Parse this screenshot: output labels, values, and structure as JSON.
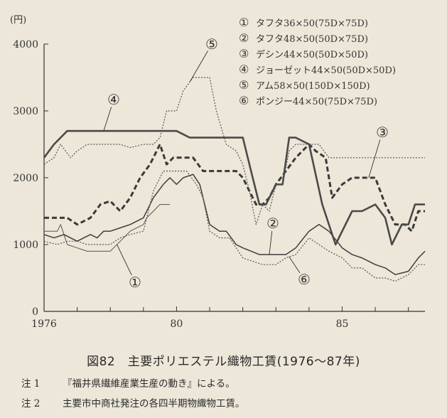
{
  "chart_data": {
    "type": "line",
    "unit_label": "(円)",
    "ylim": [
      0,
      4000
    ],
    "xlim": [
      1976,
      1987.5
    ],
    "y_ticks": [
      {
        "value": 0,
        "label": "0"
      },
      {
        "value": 1000,
        "label": "1000"
      },
      {
        "value": 2000,
        "label": "2000"
      },
      {
        "value": 3000,
        "label": "3000"
      },
      {
        "value": 4000,
        "label": "4000"
      }
    ],
    "x_ticks": [
      {
        "value": 1976,
        "label": "1976"
      },
      {
        "value": 1980,
        "label": "80"
      },
      {
        "value": 1985,
        "label": "85"
      }
    ],
    "x_minor_ticks": [
      1977,
      1978,
      1979,
      1981,
      1982,
      1983,
      1984,
      1986,
      1987
    ],
    "legend_position": "top-right",
    "series": [
      {
        "name": "タフタ36×50(75D×75D)",
        "marker": "①",
        "style": "solid-thin",
        "color": "#555555",
        "x": [
          1976,
          1976.4,
          1976.5,
          1976.7,
          1977,
          1977.3,
          1977.5,
          1977.7,
          1978,
          1978.1,
          1978.3,
          1978.6,
          1979,
          1979.1,
          1979.3,
          1979.5,
          1979.8
        ],
        "y": [
          1200,
          1200,
          1300,
          1000,
          950,
          900,
          900,
          900,
          900,
          950,
          1050,
          1200,
          1300,
          1400,
          1500,
          1600,
          1600
        ]
      },
      {
        "name": "タフタ48×50(50D×75D)",
        "marker": "②",
        "style": "solid-medium",
        "color": "#3d3d3d",
        "x": [
          1976,
          1976.3,
          1976.6,
          1977,
          1977.2,
          1977.4,
          1977.6,
          1977.8,
          1978,
          1978.3,
          1978.6,
          1979,
          1979.3,
          1979.6,
          1979.8,
          1980,
          1980.2,
          1980.5,
          1980.7,
          1981,
          1981.3,
          1981.5,
          1981.8,
          1982,
          1982.5,
          1982.8,
          1983,
          1983.3,
          1983.6,
          1984,
          1984.3,
          1984.6,
          1985,
          1985.3,
          1985.6,
          1986,
          1986.3,
          1986.6,
          1987,
          1987.3,
          1987.5
        ],
        "y": [
          1150,
          1100,
          1150,
          1050,
          1100,
          1150,
          1100,
          1200,
          1200,
          1250,
          1300,
          1400,
          1700,
          1900,
          2000,
          1900,
          2000,
          2050,
          1900,
          1300,
          1200,
          1200,
          1000,
          950,
          850,
          850,
          850,
          850,
          950,
          1200,
          1300,
          1200,
          950,
          850,
          800,
          700,
          650,
          550,
          600,
          800,
          900
        ]
      },
      {
        "name": "デシン44×50(50D×50D)",
        "marker": "③",
        "style": "thick-dashed",
        "color": "#3a3a3a",
        "x": [
          1976,
          1976.4,
          1976.7,
          1977,
          1977.4,
          1977.7,
          1978,
          1978.3,
          1978.6,
          1978.9,
          1979.2,
          1979.5,
          1979.7,
          1979.9,
          1980,
          1980.2,
          1980.5,
          1980.8,
          1981,
          1981.5,
          1981.8,
          1982,
          1982.2,
          1982.4,
          1982.6,
          1982.8,
          1983,
          1983.3,
          1983.6,
          1984,
          1984.2,
          1984.5,
          1984.7,
          1985,
          1985.3,
          1985.6,
          1986,
          1986.3,
          1986.6,
          1986.9,
          1987.1,
          1987.3,
          1987.5
        ],
        "y": [
          1400,
          1400,
          1400,
          1300,
          1400,
          1600,
          1650,
          1500,
          1700,
          2000,
          2200,
          2500,
          2200,
          2300,
          2300,
          2300,
          2300,
          2100,
          2100,
          2100,
          2100,
          2000,
          1800,
          1600,
          1600,
          1700,
          1900,
          2100,
          2300,
          2500,
          2400,
          2300,
          1700,
          1900,
          2000,
          2000,
          2000,
          1600,
          1300,
          1300,
          1200,
          1500,
          1500
        ]
      },
      {
        "name": "ジョーゼット44×50(50D×50D)",
        "marker": "④",
        "style": "thick-solid",
        "color": "#4a4a4a",
        "x": [
          1976,
          1976.3,
          1976.7,
          1977,
          1978,
          1979,
          1979.6,
          1980,
          1980.4,
          1981,
          1981.5,
          1982,
          1982.3,
          1982.5,
          1982.7,
          1983,
          1983.2,
          1983.4,
          1983.6,
          1984,
          1984.4,
          1984.8,
          1985,
          1985.3,
          1985.6,
          1986,
          1986.3,
          1986.5,
          1986.8,
          1987,
          1987.2,
          1987.5
        ],
        "y": [
          2300,
          2500,
          2700,
          2700,
          2700,
          2700,
          2700,
          2700,
          2600,
          2600,
          2600,
          2600,
          2000,
          1600,
          1600,
          1900,
          1900,
          2600,
          2600,
          2500,
          1600,
          1000,
          1200,
          1500,
          1500,
          1600,
          1400,
          1000,
          1300,
          1300,
          1600,
          1600
        ]
      },
      {
        "name": "アム58×50(150D×150D)",
        "marker": "⑤",
        "style": "thin-dotted",
        "color": "#555555",
        "x": [
          1976,
          1976.3,
          1976.5,
          1976.8,
          1977,
          1977.3,
          1977.6,
          1978,
          1978.3,
          1978.6,
          1979,
          1979.3,
          1979.5,
          1979.7,
          1980,
          1980.2,
          1980.5,
          1980.8,
          1981,
          1981.2,
          1981.5,
          1981.8,
          1982,
          1982.2,
          1982.4,
          1982.6,
          1982.8,
          1983,
          1983.2,
          1983.4,
          1983.6,
          1984,
          1984.3,
          1984.6,
          1985,
          1985.5,
          1986,
          1986.5,
          1987,
          1987.5
        ],
        "y": [
          2200,
          2300,
          2500,
          2300,
          2400,
          2500,
          2500,
          2500,
          2500,
          2450,
          2500,
          2500,
          2600,
          3000,
          3000,
          3300,
          3500,
          3500,
          3500,
          3000,
          2500,
          2400,
          2200,
          1800,
          1300,
          1600,
          1500,
          1900,
          1900,
          2400,
          2500,
          2500,
          2500,
          2300,
          2300,
          2300,
          2300,
          2300,
          2300,
          2300
        ]
      },
      {
        "name": "ポンジー44×50(75D×75D)",
        "marker": "⑥",
        "style": "thin-dotted",
        "color": "#555555",
        "x": [
          1976,
          1976.4,
          1976.7,
          1977,
          1977.3,
          1977.6,
          1978,
          1978.3,
          1978.6,
          1979,
          1979.3,
          1979.6,
          1980,
          1980.3,
          1980.6,
          1980.8,
          1981,
          1981.3,
          1981.6,
          1982,
          1982.3,
          1982.6,
          1983,
          1983.3,
          1983.6,
          1984,
          1984.3,
          1984.6,
          1985,
          1985.3,
          1985.6,
          1986,
          1986.3,
          1986.6,
          1987,
          1987.3,
          1987.5
        ],
        "y": [
          1050,
          1000,
          1050,
          1050,
          1000,
          1000,
          1000,
          1100,
          1150,
          1200,
          1800,
          2100,
          2100,
          2100,
          1900,
          1700,
          1200,
          1100,
          1100,
          800,
          750,
          700,
          700,
          800,
          850,
          1100,
          1000,
          900,
          800,
          650,
          650,
          500,
          500,
          450,
          550,
          700,
          700
        ]
      }
    ],
    "callouts": [
      {
        "series": 0,
        "label": "①"
      },
      {
        "series": 1,
        "label": "②"
      },
      {
        "series": 2,
        "label": "③"
      },
      {
        "series": 3,
        "label": "④"
      },
      {
        "series": 4,
        "label": "⑤"
      },
      {
        "series": 5,
        "label": "⑥"
      }
    ]
  },
  "caption": "図82　主要ポリエステル織物工賃(1976〜87年)",
  "notes": [
    {
      "num": "注 1",
      "text": "『福井県繊維産業生産の動き』による。"
    },
    {
      "num": "注 2",
      "text": "主要市中商社発注の各四半期物織物工賃。"
    }
  ]
}
